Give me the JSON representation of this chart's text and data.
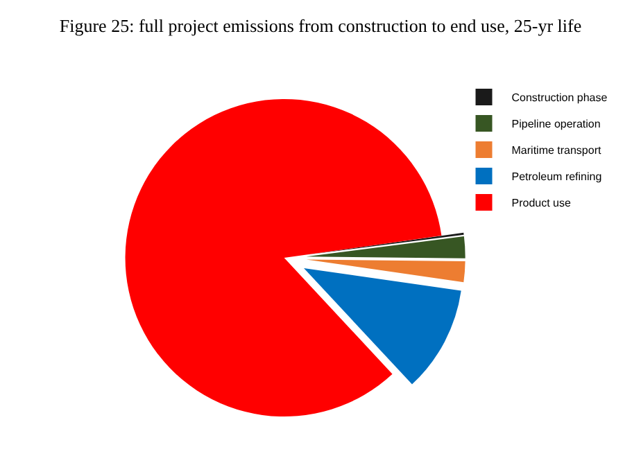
{
  "chart_data": {
    "type": "pie",
    "title": "Figure 25: full project emissions from construction to end use, 25-yr life",
    "categories": [
      "Construction phase",
      "Pipeline operation",
      "Maritime transport",
      "Petroleum refining",
      "Product use"
    ],
    "values": [
      0.2,
      2.2,
      2.1,
      10.8,
      84.7
    ],
    "colors": [
      "#1a1a1a",
      "#375623",
      "#ed7d31",
      "#0070c0",
      "#ff0000"
    ],
    "legend": "top right"
  }
}
